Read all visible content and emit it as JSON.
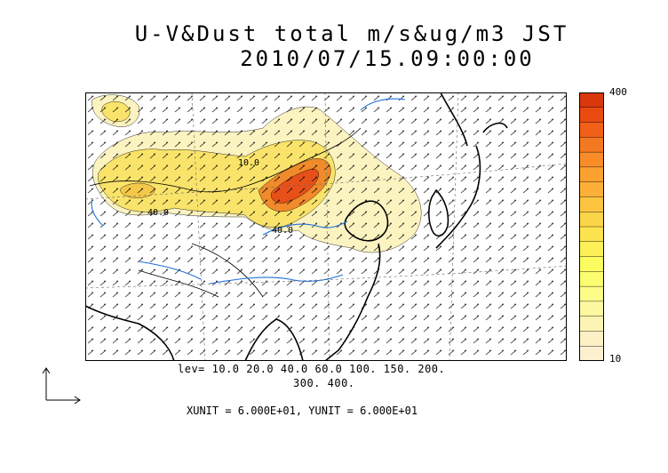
{
  "title": {
    "line1": "U-V&Dust total m/s&ug/m3 JST",
    "line2": "2010/07/15.09:00:00"
  },
  "colorbar": {
    "max_label": "400",
    "min_label": "10",
    "colors": [
      "#d8380c",
      "#e84a10",
      "#f06018",
      "#f47820",
      "#f88c28",
      "#fca030",
      "#fcb038",
      "#fcc440",
      "#fcd448",
      "#fce450",
      "#fcf058",
      "#fcfc60",
      "#fcfc70",
      "#fcfc88",
      "#fcf8a0",
      "#fcf4b4",
      "#fcf0c4",
      "#fcf0d0"
    ]
  },
  "contour_levels": {
    "line1": "lev= 10.0 20.0 40.0 60.0 100. 150. 200.",
    "line2": "300. 400."
  },
  "contour_labels": [
    "10.0",
    "40.0",
    "40.0"
  ],
  "units": "XUNIT = 6.000E+01, YUNIT = 6.000E+01",
  "map": {
    "land_color": "#ffffff",
    "coast_color": "#000000",
    "river_color": "#1f6fd8",
    "dust_colors": {
      "low": "#fbf3c0",
      "mid": "#f9e36a",
      "high": "#f08a2a",
      "peak": "#e8501a"
    }
  }
}
